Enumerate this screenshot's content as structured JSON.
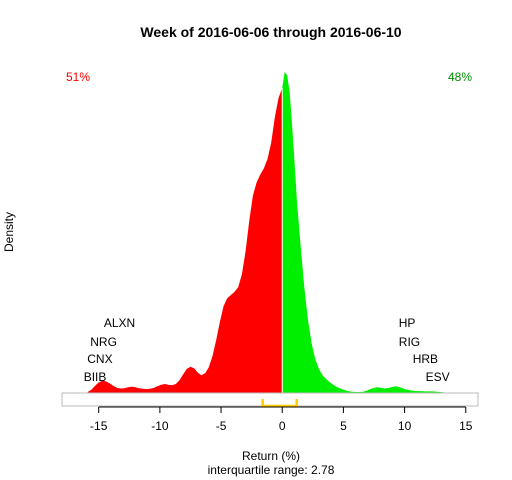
{
  "chart_data": {
    "type": "area",
    "title": "Week of 2016-06-06 through 2016-06-10",
    "xlabel": "Return (%)",
    "ylabel": "Density",
    "subtitle": "interquartile range: 2.78",
    "xlim": [
      -18,
      16
    ],
    "x_ticks": [
      -15,
      -10,
      -5,
      0,
      5,
      10,
      15
    ],
    "ylim": [
      0,
      1
    ],
    "y_axis_drawn": false,
    "grid": false,
    "split_at": 0,
    "colors": {
      "negative": "#ff0000",
      "positive": "#00ee00",
      "iqr": "#ffcc00",
      "neg_pct_text": "#ff0000",
      "pos_pct_text": "#008b00",
      "divider": "#ffffff",
      "box": "#bbbbbb"
    },
    "negative_share": "51%",
    "positive_share": "48%",
    "iqr_marker": {
      "from": -1.6,
      "to": 1.18
    },
    "density": {
      "x": [
        -15.9,
        -15.6,
        -15.3,
        -15.0,
        -14.7,
        -14.4,
        -14.1,
        -13.8,
        -13.5,
        -13.2,
        -12.9,
        -12.6,
        -12.3,
        -12.0,
        -11.7,
        -11.4,
        -11.1,
        -10.8,
        -10.5,
        -10.2,
        -9.9,
        -9.6,
        -9.3,
        -9.0,
        -8.7,
        -8.4,
        -8.1,
        -7.8,
        -7.5,
        -7.2,
        -6.9,
        -6.6,
        -6.3,
        -6.0,
        -5.7,
        -5.4,
        -5.1,
        -4.8,
        -4.5,
        -4.2,
        -3.9,
        -3.6,
        -3.3,
        -3.0,
        -2.7,
        -2.4,
        -2.1,
        -1.8,
        -1.5,
        -1.2,
        -0.9,
        -0.6,
        -0.3,
        0.0,
        0.2,
        0.4,
        0.6,
        0.8,
        1.0,
        1.2,
        1.5,
        1.8,
        2.1,
        2.4,
        2.7,
        3.0,
        3.3,
        3.6,
        3.9,
        4.2,
        4.5,
        4.8,
        5.1,
        5.4,
        5.7,
        6.0,
        6.3,
        6.6,
        6.9,
        7.2,
        7.5,
        7.8,
        8.1,
        8.4,
        8.7,
        9.0,
        9.3,
        9.6,
        9.9,
        10.2,
        10.5,
        10.8,
        11.1,
        11.4,
        11.7,
        12.0,
        12.3,
        12.6,
        12.9,
        13.2,
        13.5,
        13.8
      ],
      "y": [
        0.003,
        0.01,
        0.022,
        0.033,
        0.038,
        0.036,
        0.03,
        0.022,
        0.016,
        0.014,
        0.015,
        0.018,
        0.02,
        0.018,
        0.015,
        0.013,
        0.012,
        0.013,
        0.016,
        0.021,
        0.026,
        0.028,
        0.026,
        0.024,
        0.028,
        0.04,
        0.058,
        0.075,
        0.082,
        0.077,
        0.063,
        0.055,
        0.062,
        0.08,
        0.115,
        0.165,
        0.22,
        0.27,
        0.295,
        0.305,
        0.315,
        0.33,
        0.37,
        0.44,
        0.535,
        0.615,
        0.655,
        0.68,
        0.7,
        0.73,
        0.78,
        0.86,
        0.92,
        0.95,
        1.0,
        0.99,
        0.94,
        0.84,
        0.72,
        0.6,
        0.46,
        0.33,
        0.23,
        0.155,
        0.105,
        0.075,
        0.055,
        0.043,
        0.033,
        0.025,
        0.018,
        0.013,
        0.009,
        0.006,
        0.004,
        0.003,
        0.003,
        0.004,
        0.007,
        0.012,
        0.016,
        0.018,
        0.016,
        0.014,
        0.016,
        0.019,
        0.021,
        0.018,
        0.014,
        0.01,
        0.008,
        0.007,
        0.006,
        0.006,
        0.005,
        0.005,
        0.005,
        0.004,
        0.003,
        0.002,
        0.001,
        0.0
      ]
    },
    "annotations": {
      "left": [
        {
          "label": "ALXN",
          "x": -13.3,
          "y": 0.205
        },
        {
          "label": "NRG",
          "x": -14.6,
          "y": 0.147
        },
        {
          "label": "CNX",
          "x": -14.9,
          "y": 0.093
        },
        {
          "label": "BIIB",
          "x": -15.3,
          "y": 0.038
        }
      ],
      "right": [
        {
          "label": "HP",
          "x": 10.2,
          "y": 0.205
        },
        {
          "label": "RIG",
          "x": 10.4,
          "y": 0.147
        },
        {
          "label": "HRB",
          "x": 11.7,
          "y": 0.093
        },
        {
          "label": "ESV",
          "x": 12.7,
          "y": 0.038
        }
      ]
    }
  }
}
